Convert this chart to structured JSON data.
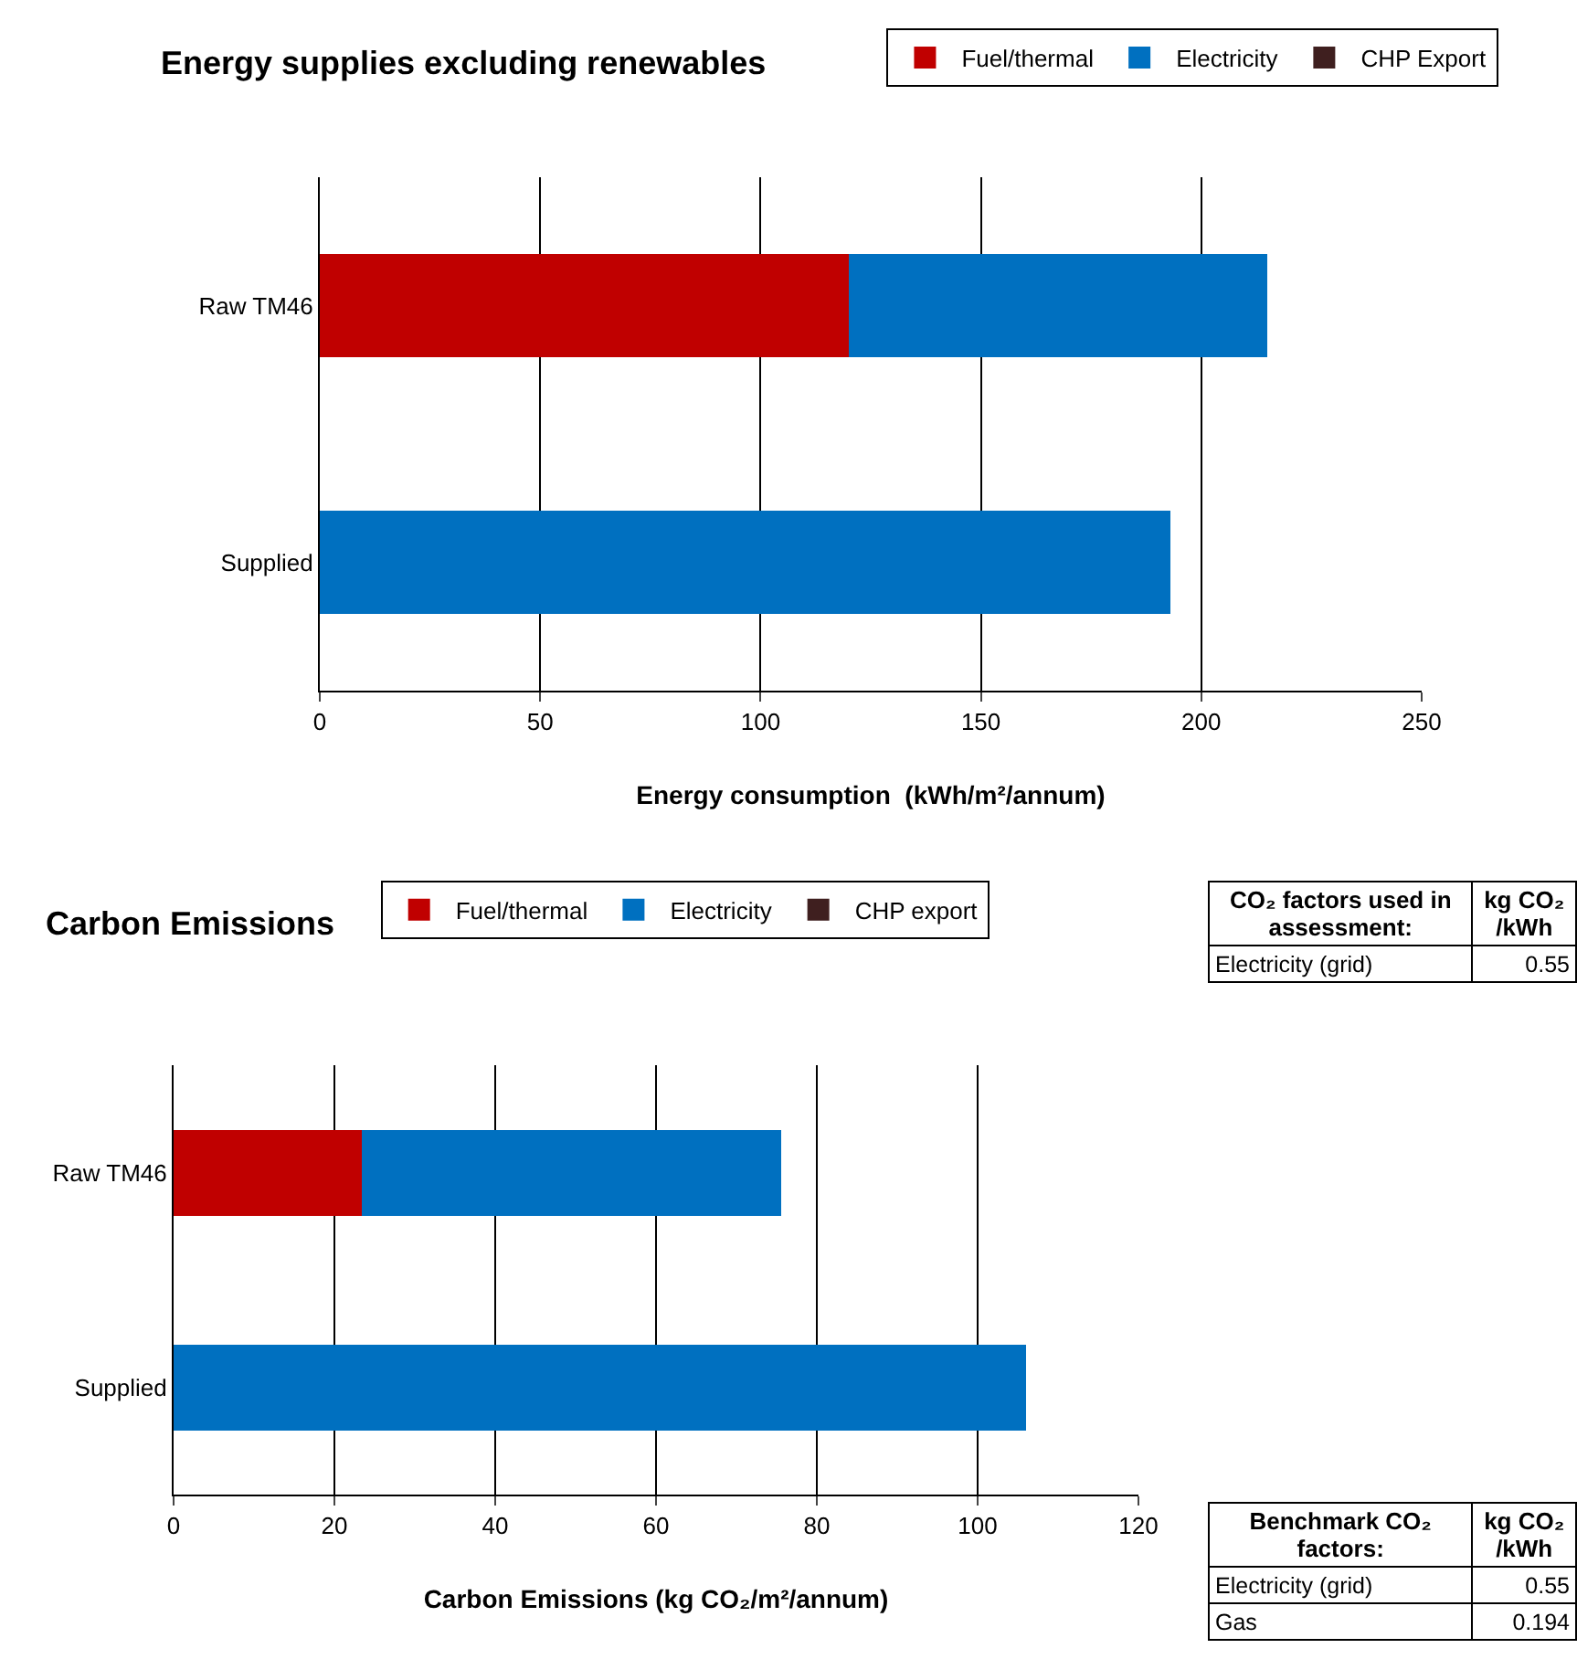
{
  "chart_data": [
    {
      "type": "bar",
      "orientation": "horizontal",
      "stacked": true,
      "title": "Energy supplies excluding renewables",
      "xlabel": "Energy consumption  (kWh/m²/annum)",
      "categories": [
        "Raw TM46",
        "Supplied"
      ],
      "series": [
        {
          "name": "Fuel/thermal",
          "color": "#c00000",
          "values": [
            120,
            0
          ]
        },
        {
          "name": "Electricity",
          "color": "#0070c0",
          "values": [
            95,
            193
          ]
        },
        {
          "name": "CHP Export",
          "color": "#3f1f1f",
          "values": [
            0,
            0
          ]
        }
      ],
      "xlim": [
        0,
        250
      ],
      "xticks": [
        0,
        50,
        100,
        150,
        200,
        250
      ],
      "grid": "x",
      "legend": "top right"
    },
    {
      "type": "bar",
      "orientation": "horizontal",
      "stacked": true,
      "title": "Carbon Emissions",
      "xlabel": "Carbon Emissions (kg CO₂/m²/annum)",
      "categories": [
        "Raw TM46",
        "Supplied"
      ],
      "series": [
        {
          "name": "Fuel/thermal",
          "color": "#c00000",
          "values": [
            23.4,
            0
          ]
        },
        {
          "name": "Electricity",
          "color": "#0070c0",
          "values": [
            52.2,
            106
          ]
        },
        {
          "name": "CHP export",
          "color": "#3f1f1f",
          "values": [
            0,
            0
          ]
        }
      ],
      "xlim": [
        0,
        120
      ],
      "xticks": [
        0,
        20,
        40,
        60,
        80,
        100,
        120
      ],
      "grid": "x",
      "legend": "top"
    },
    {
      "type": "other",
      "annotations": [
        "CO₂ factors used in assessment:",
        "kg CO₂ /kWh",
        "Electricity (grid)",
        "0.55"
      ]
    },
    {
      "type": "other",
      "annotations": [
        "Benchmark CO₂ factors:",
        "kg CO₂ /kWh",
        "Electricity (grid)",
        "0.55",
        "Gas",
        "0.194"
      ]
    }
  ]
}
